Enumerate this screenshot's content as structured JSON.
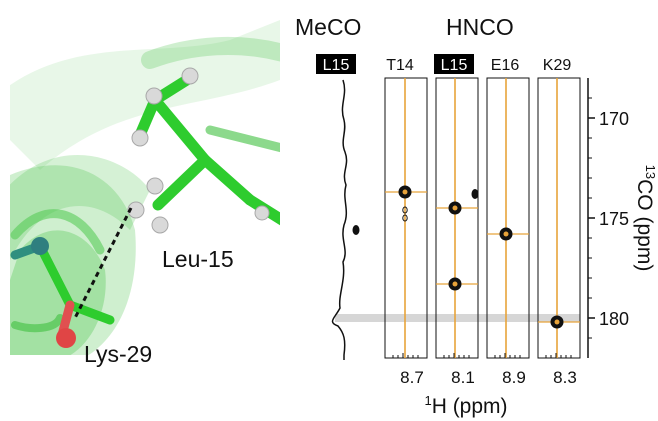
{
  "molecule": {
    "residue_a": "Leu-15",
    "residue_b": "Lys-29"
  },
  "titles": {
    "meco": "MeCO",
    "hnco": "HNCO"
  },
  "strips": [
    {
      "label": "L15",
      "highlighted": true
    },
    {
      "label": "T14",
      "highlighted": false
    },
    {
      "label": "L15",
      "highlighted": true
    },
    {
      "label": "E16",
      "highlighted": false
    },
    {
      "label": "K29",
      "highlighted": false
    }
  ],
  "axes": {
    "y_label_sup": "13",
    "y_label": "CO (ppm)",
    "y_ticks": [
      "170",
      "175",
      "180"
    ],
    "x_label_sup": "1",
    "x_label": "H (ppm)",
    "x_ticks": [
      "8.7",
      "8.1",
      "8.9",
      "8.3"
    ]
  },
  "chart_data": {
    "type": "scatter",
    "y_axis": {
      "quantity": "13CO (ppm)",
      "range": [
        182,
        168
      ],
      "ticks": [
        170,
        175,
        180
      ]
    },
    "highlight_shift_ppm": 180,
    "meco_trace_peak_ppm": 180,
    "peaks": [
      {
        "strip": "T14",
        "co_ppm": 173.7
      },
      {
        "strip": "T14",
        "co_ppm": 174.6,
        "weak": true
      },
      {
        "strip": "T14",
        "co_ppm": 175.0,
        "weak": true
      },
      {
        "strip": "L15",
        "co_ppm": 174.5
      },
      {
        "strip": "L15",
        "co_ppm": 178.3
      },
      {
        "strip": "E16",
        "co_ppm": 175.8
      },
      {
        "strip": "K29",
        "co_ppm": 180.2
      }
    ]
  },
  "colors": {
    "green": "#3fbf3f",
    "orange": "#e8a33a",
    "label_bg": "#000000",
    "band": "#cccccc"
  }
}
